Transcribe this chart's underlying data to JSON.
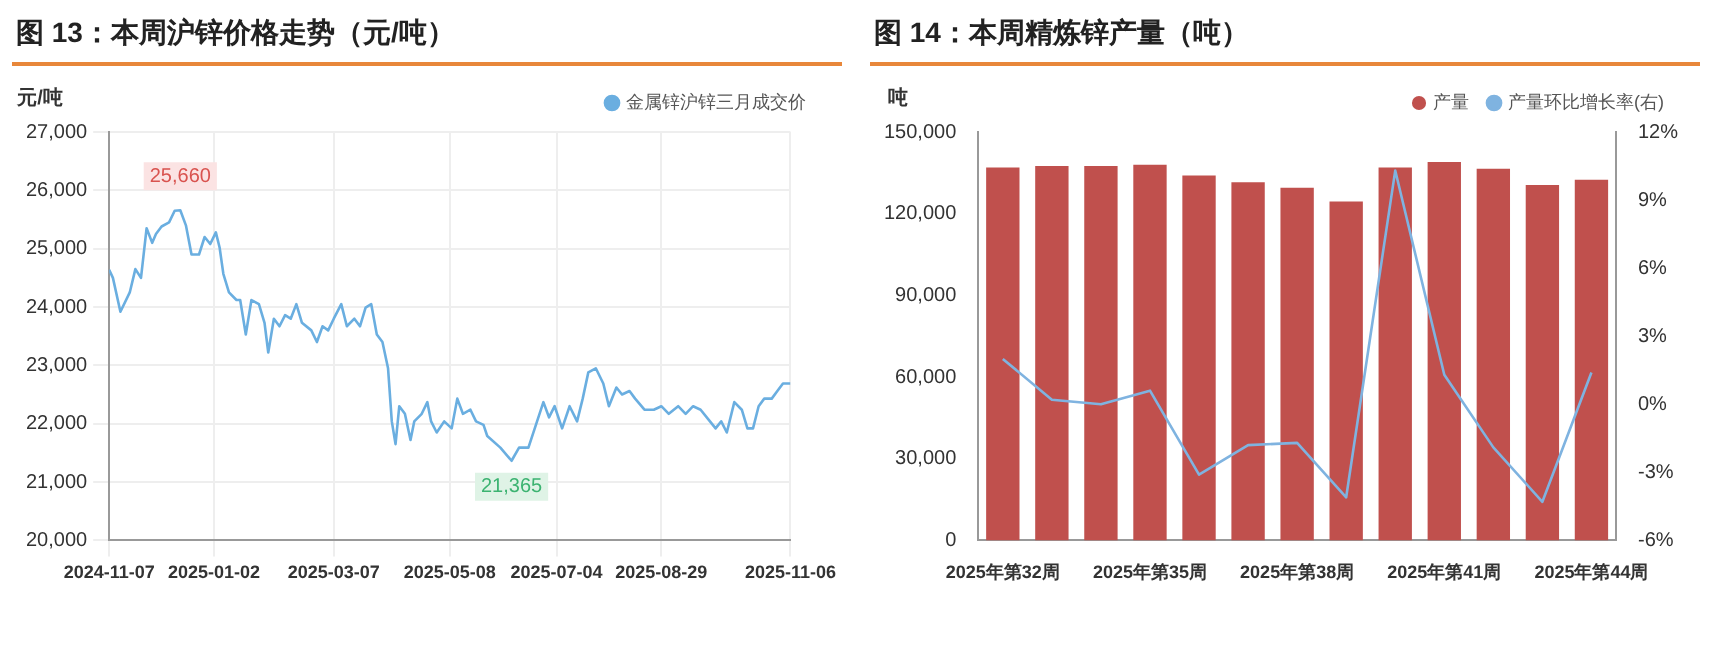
{
  "chart_data": [
    {
      "type": "line",
      "title": "图 13：本周沪锌价格走势（元/吨）",
      "ylabel": "元/吨",
      "legend": "top right",
      "grid": true,
      "marker": "none",
      "xlim": [
        "2024-11-07",
        "2025-11-06"
      ],
      "xticks": [
        "2024-11-07",
        "2025-01-02",
        "2025-03-07",
        "2025-05-08",
        "2025-07-04",
        "2025-08-29",
        "2025-11-06"
      ],
      "ylim": [
        20000,
        27000
      ],
      "yticks": [
        {
          "value": 20000,
          "label": "20,000"
        },
        {
          "value": 21000,
          "label": "21,000"
        },
        {
          "value": 22000,
          "label": "22,000"
        },
        {
          "value": 23000,
          "label": "23,000"
        },
        {
          "value": 24000,
          "label": "24,000"
        },
        {
          "value": 25000,
          "label": "25,000"
        },
        {
          "value": 26000,
          "label": "26,000"
        },
        {
          "value": 27000,
          "label": "27,000"
        }
      ],
      "annotations": [
        {
          "text": "25,660",
          "x": "2024-12-15",
          "y": 25660
        },
        {
          "text": "21,365",
          "x": "2025-06-10",
          "y": 21365
        }
      ],
      "series": [
        {
          "name": "金属锌沪锌三月成交价",
          "color": "#6aaee0",
          "x": [
            "2024-11-07",
            "2024-11-09",
            "2024-11-13",
            "2024-11-18",
            "2024-11-21",
            "2024-11-24",
            "2024-11-27",
            "2024-11-30",
            "2024-12-02",
            "2024-12-05",
            "2024-12-09",
            "2024-12-12",
            "2024-12-15",
            "2024-12-18",
            "2024-12-21",
            "2024-12-25",
            "2024-12-28",
            "2024-12-31",
            "2025-01-03",
            "2025-01-05",
            "2025-01-07",
            "2025-01-10",
            "2025-01-14",
            "2025-01-16",
            "2025-01-19",
            "2025-01-22",
            "2025-01-26",
            "2025-01-29",
            "2025-01-31",
            "2025-02-03",
            "2025-02-06",
            "2025-02-09",
            "2025-02-12",
            "2025-02-15",
            "2025-02-18",
            "2025-02-23",
            "2025-02-26",
            "2025-03-01",
            "2025-03-04",
            "2025-03-07",
            "2025-03-11",
            "2025-03-14",
            "2025-03-18",
            "2025-03-21",
            "2025-03-24",
            "2025-03-27",
            "2025-03-30",
            "2025-04-02",
            "2025-04-05",
            "2025-04-07",
            "2025-04-09",
            "2025-04-11",
            "2025-04-14",
            "2025-04-17",
            "2025-04-19",
            "2025-04-23",
            "2025-04-26",
            "2025-04-28",
            "2025-05-01",
            "2025-05-05",
            "2025-05-09",
            "2025-05-12",
            "2025-05-15",
            "2025-05-19",
            "2025-05-22",
            "2025-05-26",
            "2025-05-28",
            "2025-06-04",
            "2025-06-10",
            "2025-06-14",
            "2025-06-19",
            "2025-06-23",
            "2025-06-27",
            "2025-06-30",
            "2025-07-03",
            "2025-07-07",
            "2025-07-11",
            "2025-07-15",
            "2025-07-18",
            "2025-07-21",
            "2025-07-25",
            "2025-07-29",
            "2025-08-01",
            "2025-08-05",
            "2025-08-08",
            "2025-08-12",
            "2025-08-15",
            "2025-08-20",
            "2025-08-25",
            "2025-08-29",
            "2025-09-02",
            "2025-09-07",
            "2025-09-11",
            "2025-09-15",
            "2025-09-19",
            "2025-09-24",
            "2025-09-27",
            "2025-09-30",
            "2025-10-03",
            "2025-10-07",
            "2025-10-11",
            "2025-10-14",
            "2025-10-17",
            "2025-10-20",
            "2025-10-23",
            "2025-10-27",
            "2025-10-30",
            "2025-11-02",
            "2025-11-06"
          ],
          "values": [
            24640,
            24500,
            23920,
            24250,
            24650,
            24500,
            25350,
            25100,
            25250,
            25380,
            25450,
            25650,
            25660,
            25400,
            24900,
            24900,
            25200,
            25080,
            25280,
            25020,
            24570,
            24250,
            24120,
            24120,
            23530,
            24120,
            24050,
            23730,
            23220,
            23800,
            23670,
            23860,
            23800,
            24050,
            23730,
            23600,
            23400,
            23670,
            23600,
            23800,
            24050,
            23670,
            23800,
            23670,
            23990,
            24050,
            23530,
            23400,
            22950,
            22040,
            21650,
            22300,
            22170,
            21720,
            22040,
            22170,
            22370,
            22040,
            21850,
            22040,
            21920,
            22430,
            22170,
            22240,
            22040,
            21980,
            21790,
            21590,
            21365,
            21590,
            21590,
            21980,
            22370,
            22110,
            22300,
            21920,
            22300,
            22040,
            22430,
            22880,
            22950,
            22690,
            22300,
            22620,
            22500,
            22560,
            22430,
            22240,
            22240,
            22300,
            22170,
            22300,
            22170,
            22300,
            22240,
            22040,
            21920,
            22040,
            21850,
            22370,
            22240,
            21920,
            21920,
            22300,
            22430,
            22430,
            22560,
            22690,
            22690
          ]
        }
      ]
    },
    {
      "type": "bar",
      "title": "图 14：本周精炼锌产量（吨）",
      "ylabel": "吨",
      "legend": "top right",
      "grid": false,
      "categories": [
        "2025年第32周",
        null,
        null,
        "2025年第35周",
        null,
        null,
        "2025年第38周",
        null,
        null,
        "2025年第41周",
        null,
        null,
        "2025年第44周"
      ],
      "ylim": [
        0,
        150000
      ],
      "yticks": [
        {
          "value": 0,
          "label": "0"
        },
        {
          "value": 30000,
          "label": "30,000"
        },
        {
          "value": 60000,
          "label": "60,000"
        },
        {
          "value": 90000,
          "label": "90,000"
        },
        {
          "value": 120000,
          "label": "120,000"
        },
        {
          "value": 150000,
          "label": "150,000"
        }
      ],
      "y2lim": [
        -6,
        12
      ],
      "y2ticks": [
        {
          "value": -6,
          "label": "-6%"
        },
        {
          "value": -3,
          "label": "-3%"
        },
        {
          "value": 0,
          "label": "0%"
        },
        {
          "value": 3,
          "label": "3%"
        },
        {
          "value": 6,
          "label": "6%"
        },
        {
          "value": 9,
          "label": "9%"
        },
        {
          "value": 12,
          "label": "12%"
        }
      ],
      "series": [
        {
          "name": "产量",
          "type": "bar",
          "color": "#c0504d",
          "values": [
            137000,
            137500,
            137500,
            138000,
            134000,
            131500,
            129500,
            124500,
            137000,
            139000,
            136500,
            130500,
            132500
          ]
        },
        {
          "name": "产量环比增长率(右)",
          "type": "line",
          "axis": "y2",
          "color": "#7fb3e0",
          "values": [
            2.0,
            0.2,
            0.0,
            0.6,
            -3.1,
            -1.8,
            -1.7,
            -4.1,
            10.3,
            1.3,
            -1.9,
            -4.3,
            1.4
          ]
        }
      ]
    }
  ]
}
